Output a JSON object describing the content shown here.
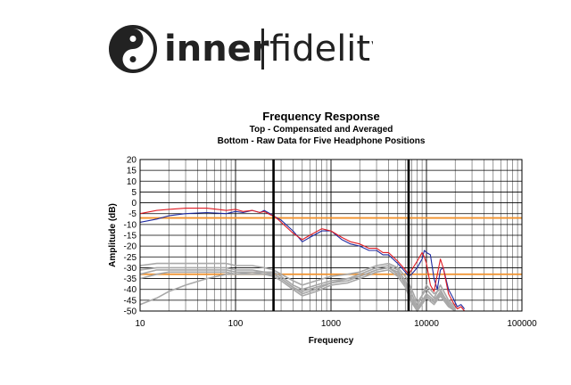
{
  "logo": {
    "word1": "inner",
    "word2": "fidelity"
  },
  "chart_data": {
    "type": "line",
    "title": "Frequency Response",
    "subtitle_lines": [
      "Top -  Compensated and Averaged",
      "Bottom - Raw Data for Five Headphone Positions"
    ],
    "xlabel": "Frequency",
    "ylabel": "Amplitude (dB)",
    "xscale": "log",
    "xlim": [
      10,
      100000
    ],
    "ylim": [
      -50,
      20
    ],
    "x_ticks": [
      "10",
      "100",
      "1000",
      "10000",
      "100000"
    ],
    "y_ticks": [
      "20",
      "15",
      "10",
      "5",
      "0",
      "-5",
      "-10",
      "-15",
      "-20",
      "-25",
      "-30",
      "-35",
      "-40",
      "-45",
      "-50"
    ],
    "grid": true,
    "vertical_markers": [
      250,
      6500
    ],
    "reference_lines": [
      -7,
      -33
    ],
    "reference_color": "#f0902a",
    "series": [
      {
        "color": "#1f2aa0",
        "x": [
          10,
          15,
          20,
          30,
          50,
          80,
          100,
          120,
          150,
          180,
          200,
          230,
          260,
          300,
          400,
          500,
          600,
          800,
          1000,
          1300,
          1600,
          2000,
          2500,
          3000,
          3500,
          4000,
          5000,
          6000,
          6500,
          7000,
          8000,
          9000,
          9500,
          10000,
          11000,
          12000,
          13000,
          14000,
          15000,
          17000,
          19000,
          21000,
          23000,
          25000
        ],
        "y": [
          -9,
          -7.5,
          -6,
          -5,
          -4.5,
          -5,
          -4,
          -4.5,
          -3.5,
          -4.5,
          -3.5,
          -5,
          -6.5,
          -8,
          -13,
          -18,
          -16,
          -13,
          -13,
          -17,
          -19,
          -20,
          -22,
          -22,
          -24,
          -24,
          -28,
          -32,
          -34,
          -33,
          -30,
          -26,
          -22,
          -23,
          -24,
          -35,
          -40,
          -31,
          -30,
          -40,
          -44,
          -48,
          -47,
          -49
        ]
      },
      {
        "color": "#e01c24",
        "x": [
          10,
          15,
          20,
          30,
          50,
          80,
          100,
          120,
          150,
          180,
          200,
          230,
          260,
          300,
          400,
          500,
          600,
          800,
          1000,
          1300,
          1600,
          2000,
          2500,
          3000,
          3500,
          4000,
          5000,
          6000,
          6500,
          7000,
          8000,
          9000,
          9500,
          10000,
          11000,
          12000,
          13000,
          14000,
          15000,
          17000,
          19000,
          21000,
          23000,
          25000
        ],
        "y": [
          -5,
          -3.5,
          -3,
          -2.5,
          -2.5,
          -3.5,
          -3,
          -4,
          -3.5,
          -4.5,
          -4,
          -5.5,
          -6.5,
          -9,
          -14,
          -17,
          -15,
          -12,
          -13,
          -16,
          -18,
          -19,
          -21,
          -21,
          -23,
          -23,
          -27,
          -31,
          -33,
          -31,
          -27,
          -23,
          -25,
          -28,
          -38,
          -41,
          -33,
          -26,
          -30,
          -42,
          -46,
          -49,
          -48,
          -50
        ]
      },
      {
        "color": "#a8a8a8",
        "x": [
          10,
          15,
          20,
          30,
          50,
          80,
          100,
          150,
          200,
          250,
          300,
          400,
          500,
          700,
          1000,
          1500,
          2000,
          3000,
          4000,
          5000,
          6000,
          7000,
          8000,
          10000,
          12000,
          14000,
          17000,
          20000
        ],
        "y": [
          -29,
          -28,
          -28,
          -28,
          -28,
          -28,
          -29,
          -29,
          -30,
          -31,
          -33,
          -36,
          -38,
          -36,
          -34,
          -33,
          -32,
          -29,
          -28,
          -30,
          -34,
          -40,
          -46,
          -40,
          -44,
          -38,
          -45,
          -48
        ]
      },
      {
        "color": "#a8a8a8",
        "x": [
          10,
          15,
          20,
          30,
          50,
          80,
          100,
          150,
          200,
          250,
          300,
          400,
          500,
          700,
          1000,
          1500,
          2000,
          3000,
          4000,
          5000,
          6000,
          7000,
          8000,
          10000,
          12000,
          14000,
          17000,
          20000
        ],
        "y": [
          -31,
          -30,
          -30,
          -30,
          -30,
          -30,
          -31,
          -31,
          -32,
          -32,
          -34,
          -38,
          -40,
          -38,
          -36,
          -35,
          -33,
          -30,
          -29,
          -31,
          -36,
          -42,
          -48,
          -38,
          -42,
          -40,
          -47,
          -50
        ]
      },
      {
        "color": "#a8a8a8",
        "x": [
          10,
          15,
          20,
          30,
          50,
          80,
          100,
          150,
          200,
          250,
          300,
          400,
          500,
          700,
          1000,
          1500,
          2000,
          3000,
          4000,
          5000,
          6000,
          7000,
          8000,
          10000,
          12000,
          14000,
          17000,
          20000
        ],
        "y": [
          -33,
          -31,
          -31,
          -31,
          -31,
          -31,
          -32,
          -32,
          -33,
          -33,
          -35,
          -39,
          -42,
          -40,
          -37,
          -36,
          -34,
          -31,
          -30,
          -33,
          -37,
          -44,
          -49,
          -42,
          -45,
          -41,
          -46,
          -49
        ]
      },
      {
        "color": "#a8a8a8",
        "x": [
          10,
          15,
          20,
          30,
          50,
          80,
          100,
          150,
          200,
          250,
          300,
          400,
          500,
          700,
          1000,
          1500,
          2000,
          3000,
          4000,
          5000,
          6000,
          7000,
          8000,
          10000,
          12000,
          14000,
          17000,
          20000
        ],
        "y": [
          -35,
          -33,
          -32,
          -32,
          -32,
          -32,
          -33,
          -33,
          -33,
          -34,
          -36,
          -40,
          -43,
          -41,
          -38,
          -37,
          -35,
          -32,
          -31,
          -34,
          -39,
          -46,
          -50,
          -44,
          -47,
          -43,
          -48,
          -50
        ]
      },
      {
        "color": "#a8a8a8",
        "x": [
          10,
          15,
          20,
          30,
          50,
          80,
          100,
          150,
          200,
          250,
          300,
          400,
          500,
          700,
          1000,
          1500,
          2000,
          3000,
          4000,
          5000,
          6000,
          7000,
          8000,
          10000,
          12000,
          14000,
          17000,
          20000
        ],
        "y": [
          -47,
          -44,
          -41,
          -38,
          -35,
          -33,
          -33,
          -32,
          -32,
          -33,
          -35,
          -39,
          -41,
          -39,
          -37,
          -35,
          -34,
          -31,
          -30,
          -32,
          -38,
          -45,
          -50,
          -43,
          -46,
          -42,
          -47,
          -50
        ]
      }
    ]
  }
}
